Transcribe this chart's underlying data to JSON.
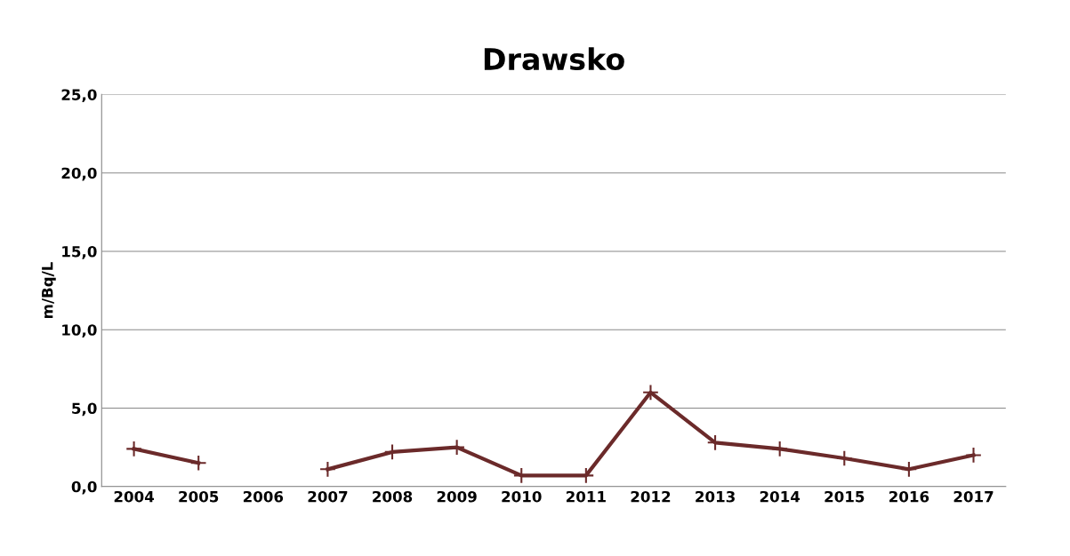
{
  "chart_data": {
    "type": "line",
    "title": "Drawsko",
    "ylabel": "m/Bq/L",
    "categories": [
      "2004",
      "2005",
      "2006",
      "2007",
      "2008",
      "2009",
      "2010",
      "2011",
      "2012",
      "2013",
      "2014",
      "2015",
      "2016",
      "2017"
    ],
    "series": [
      {
        "color": "#6b2a2a",
        "values": [
          2.4,
          1.5,
          null,
          1.1,
          2.2,
          2.5,
          0.7,
          0.7,
          6.0,
          2.8,
          2.4,
          1.8,
          1.1,
          2.0
        ]
      }
    ],
    "ylim": [
      0,
      25
    ],
    "yticks": [
      {
        "value": 0,
        "label": "0,0"
      },
      {
        "value": 5,
        "label": "5,0"
      },
      {
        "value": 10,
        "label": "10,0"
      },
      {
        "value": 15,
        "label": "15,0"
      },
      {
        "value": 20,
        "label": "20,0"
      },
      {
        "value": 25,
        "label": "25,0"
      }
    ],
    "grid": "y",
    "marker": "cross",
    "line_style": "solid",
    "legend": false
  }
}
